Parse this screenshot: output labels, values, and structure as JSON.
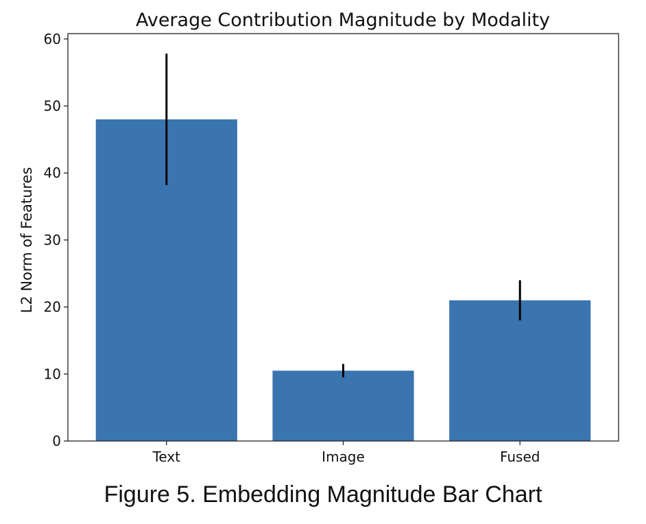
{
  "chart_data": {
    "type": "bar",
    "title": "Average Contribution Magnitude by Modality",
    "xlabel": "",
    "ylabel": "L2 Norm of Features",
    "categories": [
      "Text",
      "Image",
      "Fused"
    ],
    "values": [
      48,
      10.5,
      21
    ],
    "errors": [
      9.8,
      1,
      3
    ],
    "ylim": [
      0,
      60.8
    ],
    "yticks": [
      0,
      10,
      20,
      30,
      40,
      50,
      60
    ],
    "grid": false,
    "bar_color": "#3b75af",
    "error_color": "#000000"
  },
  "caption": "Figure 5. Embedding Magnitude Bar Chart"
}
